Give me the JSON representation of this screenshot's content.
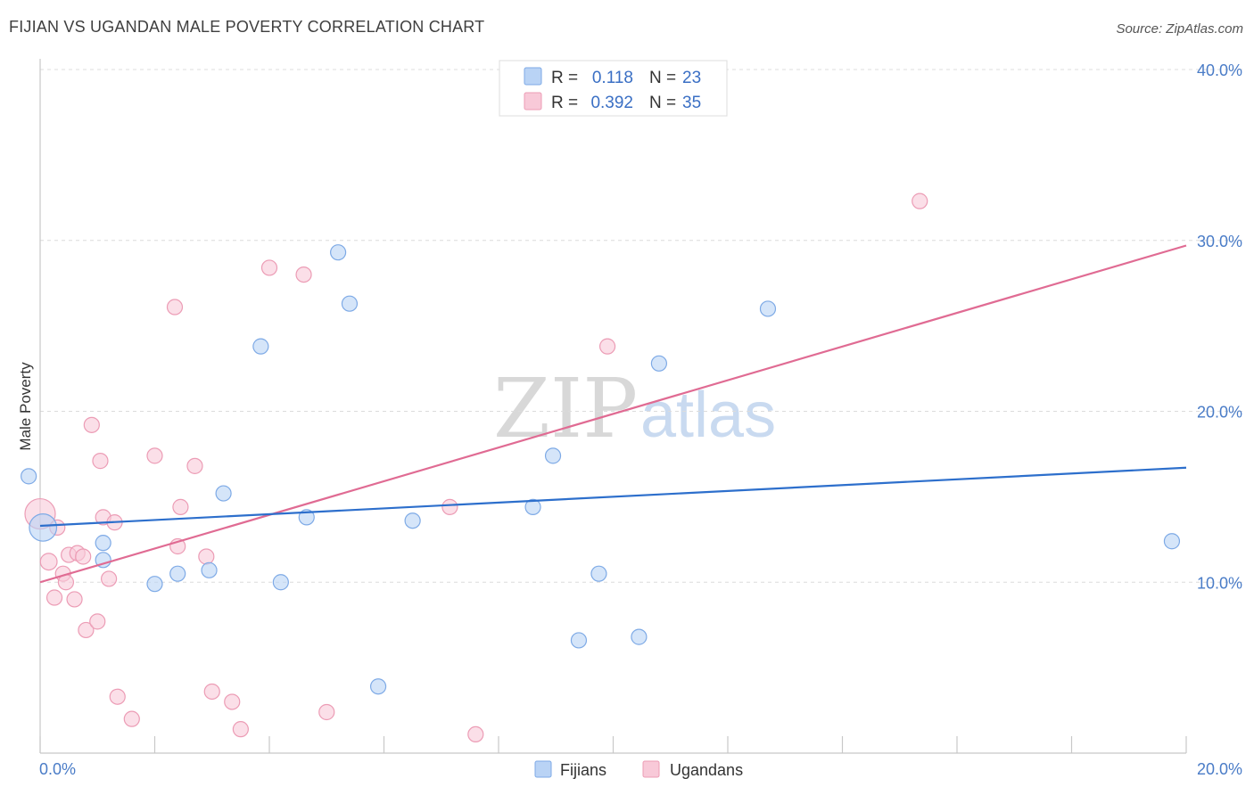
{
  "title": "FIJIAN VS UGANDAN MALE POVERTY CORRELATION CHART",
  "source": "Source: ZipAtlas.com",
  "watermark": {
    "zip": "ZIP",
    "atlas": "atlas"
  },
  "legend_top": [
    {
      "r_label": "R =",
      "r_value": "0.118",
      "n_label": "N =",
      "n_value": "23"
    },
    {
      "r_label": "R =",
      "r_value": "0.392",
      "n_label": "N =",
      "n_value": "35"
    }
  ],
  "legend_bottom": [
    {
      "label": "Fijians"
    },
    {
      "label": "Ugandans"
    }
  ],
  "colors": {
    "fijians_fill": "#b9d3f5",
    "fijians_stroke": "#7eaae6",
    "fijians_line": "#2d6fcc",
    "ugandans_fill": "#f8c9d8",
    "ugandans_stroke": "#ec9cb5",
    "ugandans_line": "#e06b93",
    "tick_color": "#4a7cc7"
  },
  "chart_data": {
    "type": "scatter",
    "title": "FIJIAN VS UGANDAN MALE POVERTY CORRELATION CHART",
    "xlabel": "",
    "ylabel": "Male Poverty",
    "xlim": [
      0,
      20
    ],
    "ylim": [
      0,
      40
    ],
    "x_ticks": [
      "0.0%",
      "20.0%"
    ],
    "y_ticks": [
      "10.0%",
      "20.0%",
      "30.0%",
      "40.0%"
    ],
    "y_tick_values": [
      10,
      20,
      30,
      40
    ],
    "grid": true,
    "legend_position": "top-center",
    "series": [
      {
        "name": "Fijians",
        "R": 0.118,
        "N": 23,
        "trend": {
          "x0": 0,
          "y0": 13.3,
          "x1": 20,
          "y1": 16.7
        },
        "points": [
          [
            0.05,
            13.2
          ],
          [
            1.1,
            11.3
          ],
          [
            1.1,
            12.3
          ],
          [
            2.0,
            9.9
          ],
          [
            2.4,
            10.5
          ],
          [
            2.95,
            10.7
          ],
          [
            3.2,
            15.2
          ],
          [
            3.85,
            23.8
          ],
          [
            4.2,
            10.0
          ],
          [
            4.65,
            13.8
          ],
          [
            5.2,
            29.3
          ],
          [
            5.4,
            26.3
          ],
          [
            5.9,
            3.9
          ],
          [
            6.5,
            13.6
          ],
          [
            8.6,
            14.4
          ],
          [
            8.95,
            17.4
          ],
          [
            9.4,
            6.6
          ],
          [
            9.75,
            10.5
          ],
          [
            10.45,
            6.8
          ],
          [
            10.8,
            22.8
          ],
          [
            12.7,
            26.0
          ],
          [
            19.75,
            12.4
          ],
          [
            -0.2,
            16.2
          ]
        ],
        "sizes": [
          1.8,
          1,
          1,
          1,
          1,
          1,
          1,
          1,
          1,
          1,
          1,
          1,
          1,
          1,
          1,
          1,
          1,
          1,
          1,
          1,
          1,
          1,
          1
        ]
      },
      {
        "name": "Ugandans",
        "R": 0.392,
        "N": 35,
        "trend": {
          "x0": 0,
          "y0": 10.0,
          "x1": 20,
          "y1": 29.7
        },
        "points": [
          [
            0.0,
            14.0
          ],
          [
            0.15,
            11.2
          ],
          [
            0.25,
            9.1
          ],
          [
            0.3,
            13.2
          ],
          [
            0.4,
            10.5
          ],
          [
            0.45,
            10.0
          ],
          [
            0.5,
            11.6
          ],
          [
            0.6,
            9.0
          ],
          [
            0.65,
            11.7
          ],
          [
            0.75,
            11.5
          ],
          [
            0.8,
            7.2
          ],
          [
            0.9,
            19.2
          ],
          [
            1.0,
            7.7
          ],
          [
            1.05,
            17.1
          ],
          [
            1.1,
            13.8
          ],
          [
            1.2,
            10.2
          ],
          [
            1.3,
            13.5
          ],
          [
            1.35,
            3.3
          ],
          [
            1.6,
            2.0
          ],
          [
            2.0,
            17.4
          ],
          [
            2.35,
            26.1
          ],
          [
            2.4,
            12.1
          ],
          [
            2.45,
            14.4
          ],
          [
            2.7,
            16.8
          ],
          [
            2.9,
            11.5
          ],
          [
            3.0,
            3.6
          ],
          [
            3.35,
            3.0
          ],
          [
            3.5,
            1.4
          ],
          [
            4.0,
            28.4
          ],
          [
            4.6,
            28.0
          ],
          [
            5.0,
            2.4
          ],
          [
            7.15,
            14.4
          ],
          [
            7.6,
            1.1
          ],
          [
            9.9,
            23.8
          ],
          [
            15.35,
            32.3
          ]
        ],
        "sizes": [
          2.0,
          1.1,
          1,
          1,
          1,
          1,
          1,
          1,
          1,
          1,
          1,
          1,
          1,
          1,
          1,
          1,
          1,
          1,
          1,
          1,
          1,
          1,
          1,
          1,
          1,
          1,
          1,
          1,
          1,
          1,
          1,
          1,
          1,
          1,
          1
        ]
      }
    ]
  }
}
